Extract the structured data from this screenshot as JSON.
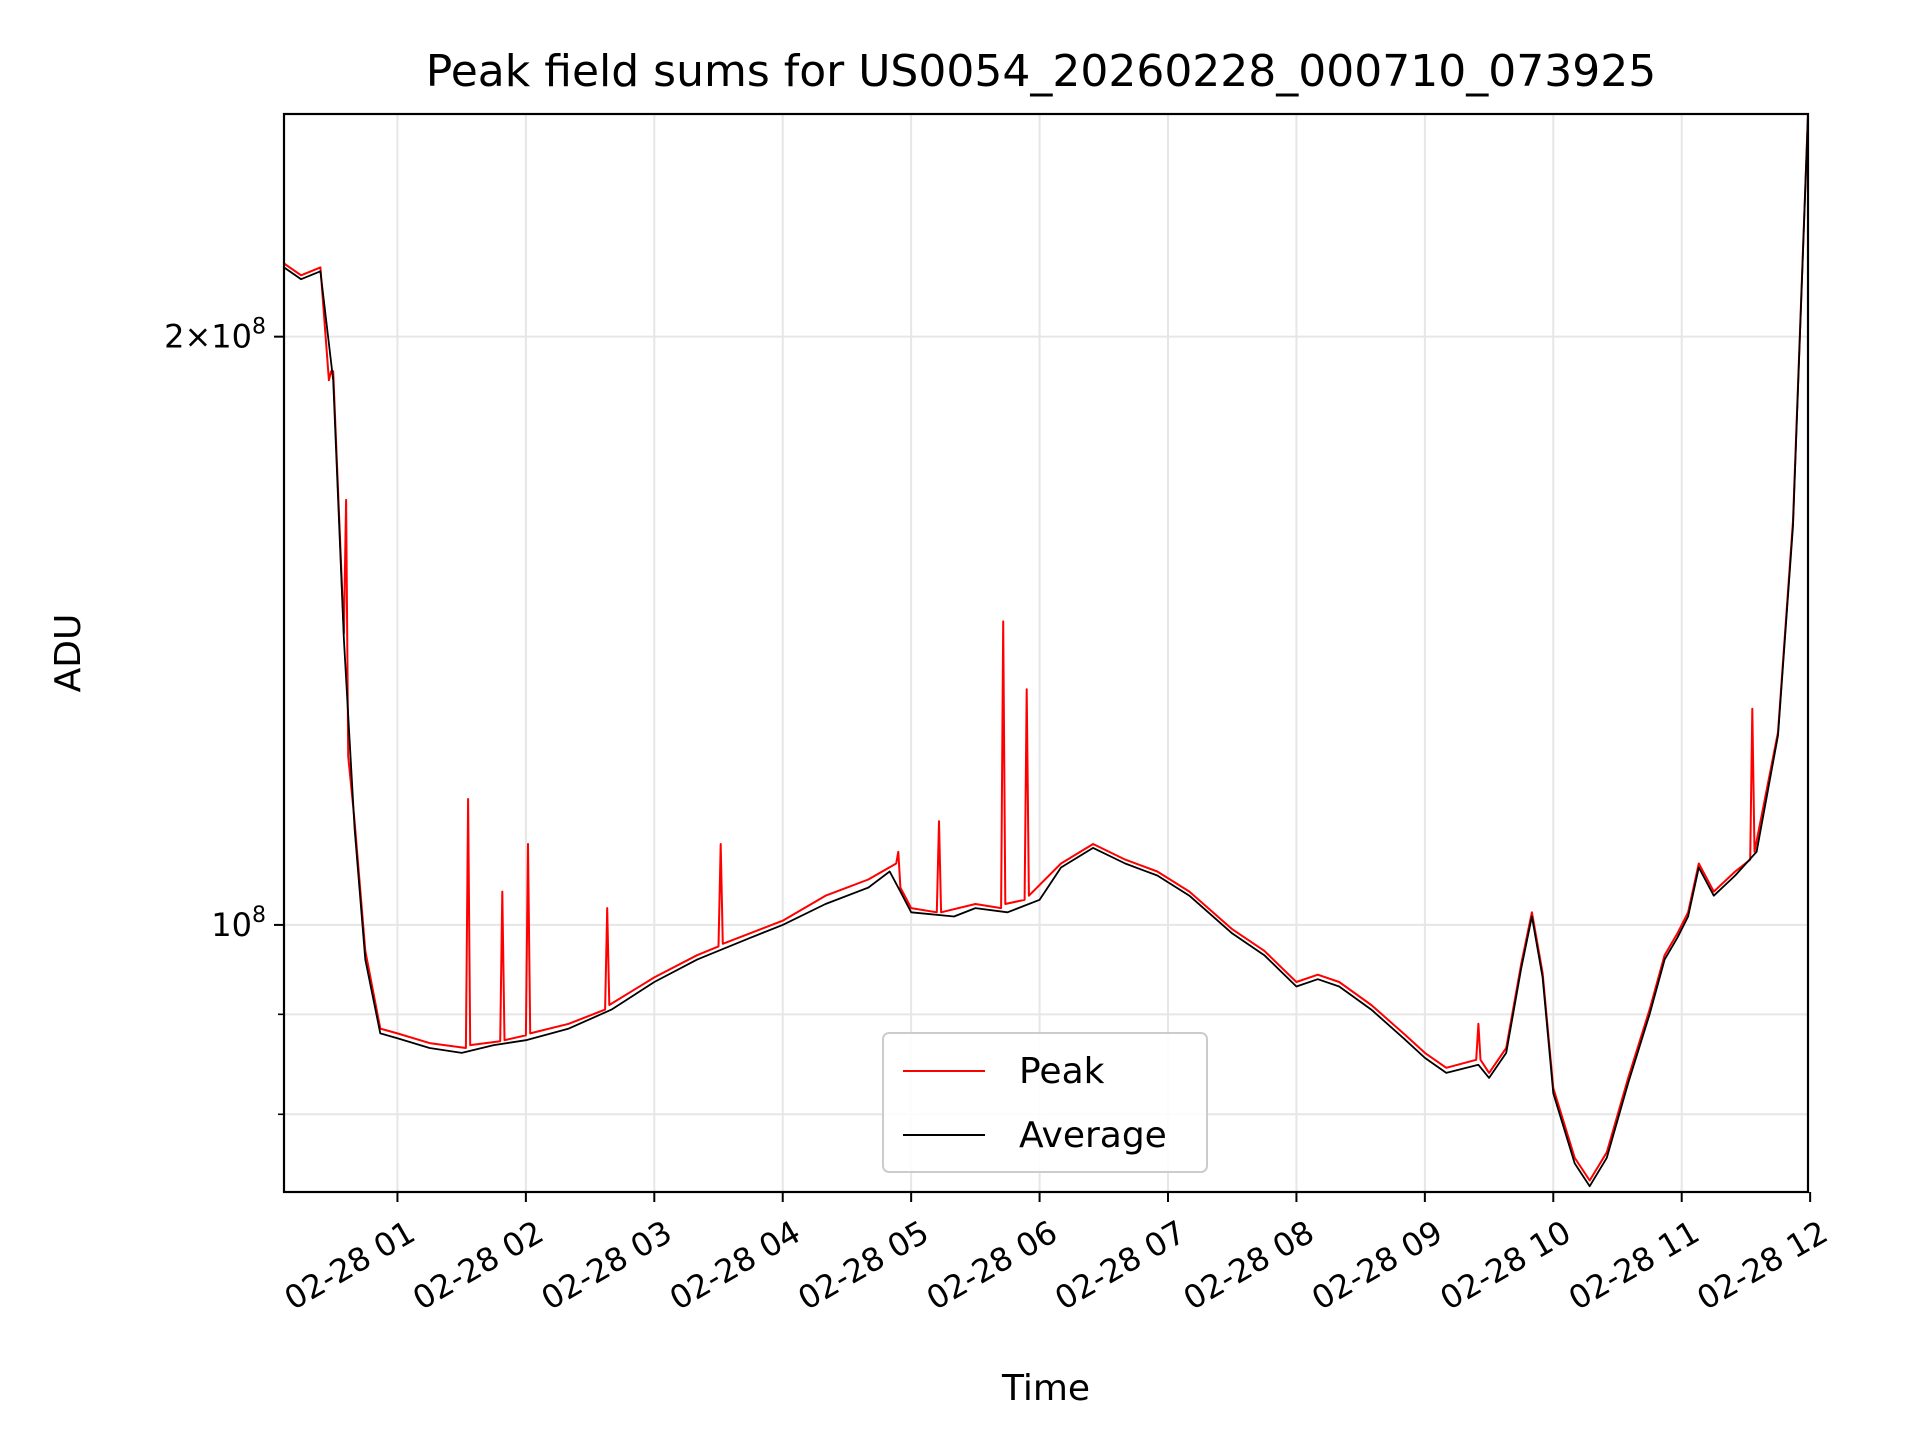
{
  "chart_data": {
    "type": "line",
    "title": "Peak field sums for US0054_20260228_000710_073925",
    "xlabel": "Time",
    "ylabel": "ADU",
    "y_scale": "log",
    "xlim": [
      "2026-02-28 00:07",
      "2026-02-28 11:59"
    ],
    "ylim": [
      73000000,
      260000000
    ],
    "grid": true,
    "legend_placement": "lower-center",
    "x_ticks": [
      "2026-02-28 01:00",
      "2026-02-28 02:00",
      "2026-02-28 03:00",
      "2026-02-28 04:00",
      "2026-02-28 05:00",
      "2026-02-28 06:00",
      "2026-02-28 07:00",
      "2026-02-28 08:00",
      "2026-02-28 09:00",
      "2026-02-28 10:00",
      "2026-02-28 11:00",
      "2026-02-28 12:00"
    ],
    "x_tick_labels": [
      "02-28 01",
      "02-28 02",
      "02-28 03",
      "02-28 04",
      "02-28 05",
      "02-28 06",
      "02-28 07",
      "02-28 08",
      "02-28 09",
      "02-28 10",
      "02-28 11",
      "02-28 12"
    ],
    "y_major_ticks": [
      100000000,
      200000000
    ],
    "y_tick_labels": [
      "10^8",
      "2×10^8"
    ],
    "y_minor_gridlines": [
      80000000,
      90000000
    ],
    "series": [
      {
        "name": "Average",
        "color": "#000000",
        "points": [
          [
            "2026-02-28 00:07",
            217000000
          ],
          [
            "2026-02-28 00:15",
            214000000
          ],
          [
            "2026-02-28 00:24",
            216000000
          ],
          [
            "2026-02-28 00:30",
            190000000
          ],
          [
            "2026-02-28 00:35",
            140000000
          ],
          [
            "2026-02-28 00:40",
            112000000
          ],
          [
            "2026-02-28 00:45",
            96000000
          ],
          [
            "2026-02-28 00:52",
            88000000
          ],
          [
            "2026-02-28 01:00",
            87500000
          ],
          [
            "2026-02-28 01:15",
            86500000
          ],
          [
            "2026-02-28 01:30",
            86000000
          ],
          [
            "2026-02-28 01:45",
            86800000
          ],
          [
            "2026-02-28 02:00",
            87300000
          ],
          [
            "2026-02-28 02:20",
            88500000
          ],
          [
            "2026-02-28 02:40",
            90500000
          ],
          [
            "2026-02-28 03:00",
            93500000
          ],
          [
            "2026-02-28 03:20",
            96000000
          ],
          [
            "2026-02-28 03:45",
            98500000
          ],
          [
            "2026-02-28 04:00",
            100000000
          ],
          [
            "2026-02-28 04:20",
            102500000
          ],
          [
            "2026-02-28 04:40",
            104500000
          ],
          [
            "2026-02-28 04:50",
            106500000
          ],
          [
            "2026-02-28 04:55",
            104000000
          ],
          [
            "2026-02-28 05:00",
            101500000
          ],
          [
            "2026-02-28 05:20",
            101000000
          ],
          [
            "2026-02-28 05:30",
            102000000
          ],
          [
            "2026-02-28 05:45",
            101500000
          ],
          [
            "2026-02-28 06:00",
            103000000
          ],
          [
            "2026-02-28 06:10",
            107000000
          ],
          [
            "2026-02-28 06:25",
            109500000
          ],
          [
            "2026-02-28 06:40",
            107500000
          ],
          [
            "2026-02-28 06:55",
            106000000
          ],
          [
            "2026-02-28 07:10",
            103500000
          ],
          [
            "2026-02-28 07:30",
            99000000
          ],
          [
            "2026-02-28 07:45",
            96500000
          ],
          [
            "2026-02-28 08:00",
            93000000
          ],
          [
            "2026-02-28 08:10",
            93800000
          ],
          [
            "2026-02-28 08:20",
            93000000
          ],
          [
            "2026-02-28 08:35",
            90500000
          ],
          [
            "2026-02-28 08:50",
            87500000
          ],
          [
            "2026-02-28 09:00",
            85500000
          ],
          [
            "2026-02-28 09:10",
            84000000
          ],
          [
            "2026-02-28 09:25",
            84800000
          ],
          [
            "2026-02-28 09:30",
            83500000
          ],
          [
            "2026-02-28 09:38",
            86000000
          ],
          [
            "2026-02-28 09:45",
            95000000
          ],
          [
            "2026-02-28 09:50",
            101000000
          ],
          [
            "2026-02-28 09:55",
            94000000
          ],
          [
            "2026-02-28 10:00",
            82000000
          ],
          [
            "2026-02-28 10:10",
            75500000
          ],
          [
            "2026-02-28 10:17",
            73500000
          ],
          [
            "2026-02-28 10:25",
            76000000
          ],
          [
            "2026-02-28 10:35",
            83000000
          ],
          [
            "2026-02-28 10:45",
            90000000
          ],
          [
            "2026-02-28 10:52",
            96000000
          ],
          [
            "2026-02-28 10:58",
            98500000
          ],
          [
            "2026-02-28 11:03",
            101000000
          ],
          [
            "2026-02-28 11:08",
            107000000
          ],
          [
            "2026-02-28 11:15",
            103500000
          ],
          [
            "2026-02-28 11:25",
            106000000
          ],
          [
            "2026-02-28 11:35",
            109000000
          ],
          [
            "2026-02-28 11:45",
            125000000
          ],
          [
            "2026-02-28 11:52",
            160000000
          ],
          [
            "2026-02-28 11:59",
            260000000
          ]
        ]
      },
      {
        "name": "Peak",
        "color": "#ff0000",
        "points": [
          [
            "2026-02-28 00:07",
            218000000
          ],
          [
            "2026-02-28 00:15",
            215000000
          ],
          [
            "2026-02-28 00:24",
            217000000
          ],
          [
            "2026-02-28 00:28",
            190000000
          ],
          [
            "2026-02-28 00:29",
            192000000
          ],
          [
            "2026-02-28 00:30",
            192000000
          ],
          [
            "2026-02-28 00:35",
            141000000
          ],
          [
            "2026-02-28 00:36",
            165000000
          ],
          [
            "2026-02-28 00:37",
            122000000
          ],
          [
            "2026-02-28 00:40",
            113000000
          ],
          [
            "2026-02-28 00:45",
            97000000
          ],
          [
            "2026-02-28 00:52",
            88500000
          ],
          [
            "2026-02-28 01:00",
            88000000
          ],
          [
            "2026-02-28 01:15",
            87000000
          ],
          [
            "2026-02-28 01:32",
            86500000
          ],
          [
            "2026-02-28 01:33",
            116000000
          ],
          [
            "2026-02-28 01:34",
            86800000
          ],
          [
            "2026-02-28 01:48",
            87200000
          ],
          [
            "2026-02-28 01:49",
            104000000
          ],
          [
            "2026-02-28 01:50",
            87300000
          ],
          [
            "2026-02-28 02:00",
            87800000
          ],
          [
            "2026-02-28 02:01",
            110000000
          ],
          [
            "2026-02-28 02:02",
            88000000
          ],
          [
            "2026-02-28 02:20",
            89000000
          ],
          [
            "2026-02-28 02:37",
            90500000
          ],
          [
            "2026-02-28 02:38",
            102000000
          ],
          [
            "2026-02-28 02:39",
            91000000
          ],
          [
            "2026-02-28 03:00",
            94000000
          ],
          [
            "2026-02-28 03:20",
            96500000
          ],
          [
            "2026-02-28 03:30",
            97500000
          ],
          [
            "2026-02-28 03:31",
            110000000
          ],
          [
            "2026-02-28 03:32",
            97800000
          ],
          [
            "2026-02-28 04:00",
            100500000
          ],
          [
            "2026-02-28 04:20",
            103500000
          ],
          [
            "2026-02-28 04:40",
            105500000
          ],
          [
            "2026-02-28 04:53",
            107500000
          ],
          [
            "2026-02-28 04:54",
            109000000
          ],
          [
            "2026-02-28 04:55",
            104500000
          ],
          [
            "2026-02-28 05:00",
            102000000
          ],
          [
            "2026-02-28 05:12",
            101500000
          ],
          [
            "2026-02-28 05:13",
            113000000
          ],
          [
            "2026-02-28 05:14",
            101500000
          ],
          [
            "2026-02-28 05:30",
            102500000
          ],
          [
            "2026-02-28 05:42",
            102000000
          ],
          [
            "2026-02-28 05:43",
            143000000
          ],
          [
            "2026-02-28 05:44",
            102500000
          ],
          [
            "2026-02-28 05:53",
            103000000
          ],
          [
            "2026-02-28 05:54",
            132000000
          ],
          [
            "2026-02-28 05:55",
            103500000
          ],
          [
            "2026-02-28 06:10",
            107500000
          ],
          [
            "2026-02-28 06:25",
            110000000
          ],
          [
            "2026-02-28 06:40",
            108000000
          ],
          [
            "2026-02-28 06:55",
            106500000
          ],
          [
            "2026-02-28 07:10",
            104000000
          ],
          [
            "2026-02-28 07:30",
            99500000
          ],
          [
            "2026-02-28 07:45",
            97000000
          ],
          [
            "2026-02-28 08:00",
            93500000
          ],
          [
            "2026-02-28 08:10",
            94300000
          ],
          [
            "2026-02-28 08:20",
            93500000
          ],
          [
            "2026-02-28 08:35",
            91000000
          ],
          [
            "2026-02-28 08:50",
            88000000
          ],
          [
            "2026-02-28 09:00",
            86000000
          ],
          [
            "2026-02-28 09:10",
            84500000
          ],
          [
            "2026-02-28 09:24",
            85300000
          ],
          [
            "2026-02-28 09:25",
            89000000
          ],
          [
            "2026-02-28 09:26",
            85300000
          ],
          [
            "2026-02-28 09:30",
            84000000
          ],
          [
            "2026-02-28 09:38",
            86500000
          ],
          [
            "2026-02-28 09:45",
            95500000
          ],
          [
            "2026-02-28 09:50",
            101500000
          ],
          [
            "2026-02-28 09:55",
            94500000
          ],
          [
            "2026-02-28 10:00",
            82500000
          ],
          [
            "2026-02-28 10:10",
            76000000
          ],
          [
            "2026-02-28 10:17",
            74000000
          ],
          [
            "2026-02-28 10:25",
            76500000
          ],
          [
            "2026-02-28 10:35",
            83500000
          ],
          [
            "2026-02-28 10:45",
            90500000
          ],
          [
            "2026-02-28 10:52",
            96500000
          ],
          [
            "2026-02-28 10:58",
            99000000
          ],
          [
            "2026-02-28 11:03",
            101500000
          ],
          [
            "2026-02-28 11:08",
            107500000
          ],
          [
            "2026-02-28 11:15",
            104000000
          ],
          [
            "2026-02-28 11:25",
            106500000
          ],
          [
            "2026-02-28 11:32",
            108000000
          ],
          [
            "2026-02-28 11:33",
            129000000
          ],
          [
            "2026-02-28 11:34",
            109000000
          ],
          [
            "2026-02-28 11:45",
            125500000
          ],
          [
            "2026-02-28 11:52",
            161000000
          ],
          [
            "2026-02-28 11:59",
            260000000
          ]
        ]
      }
    ]
  }
}
